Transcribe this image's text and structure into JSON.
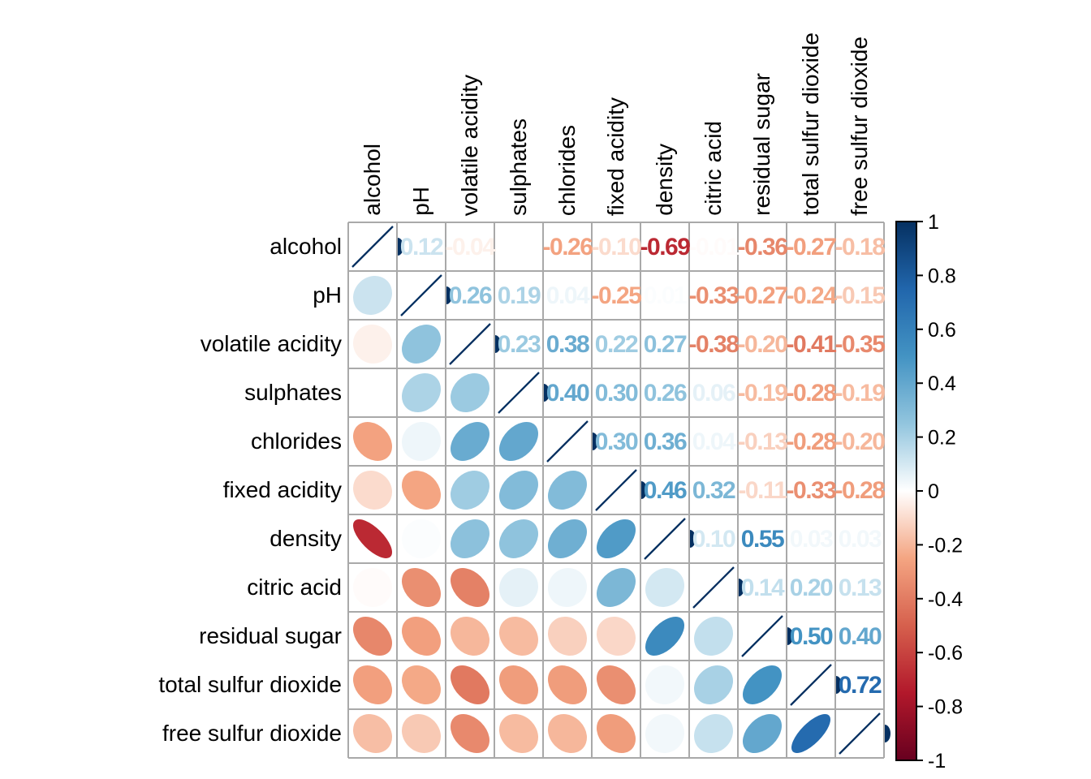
{
  "chart_data": {
    "type": "heatmap",
    "subtype": "correlation-matrix-mixed",
    "title": "",
    "lower_glyph": "ellipse",
    "upper_glyph": "number",
    "diag_glyph": "line",
    "legend_position": "right",
    "grid_on": true,
    "variables": [
      "alcohol",
      "pH",
      "volatile acidity",
      "sulphates",
      "chlorides",
      "fixed acidity",
      "density",
      "citric acid",
      "residual sugar",
      "total sulfur dioxide",
      "free sulfur dioxide"
    ],
    "matrix": [
      [
        1.0,
        0.12,
        -0.04,
        0.0,
        -0.26,
        -0.1,
        -0.69,
        -0.01,
        -0.36,
        -0.27,
        -0.18
      ],
      [
        0.12,
        1.0,
        0.26,
        0.19,
        0.04,
        -0.25,
        0.01,
        -0.33,
        -0.27,
        -0.24,
        -0.15
      ],
      [
        -0.04,
        0.26,
        1.0,
        0.23,
        0.38,
        0.22,
        0.27,
        -0.38,
        -0.2,
        -0.41,
        -0.35
      ],
      [
        0.0,
        0.19,
        0.23,
        1.0,
        0.4,
        0.3,
        0.26,
        0.06,
        -0.19,
        -0.28,
        -0.19
      ],
      [
        -0.26,
        0.04,
        0.38,
        0.4,
        1.0,
        0.3,
        0.36,
        0.04,
        -0.13,
        -0.28,
        -0.2
      ],
      [
        -0.1,
        -0.25,
        0.22,
        0.3,
        0.3,
        1.0,
        0.46,
        0.32,
        -0.11,
        -0.33,
        -0.28
      ],
      [
        -0.69,
        0.01,
        0.27,
        0.26,
        0.36,
        0.46,
        1.0,
        0.1,
        0.55,
        0.03,
        0.03
      ],
      [
        -0.01,
        -0.33,
        -0.38,
        0.06,
        0.04,
        0.32,
        0.1,
        1.0,
        0.14,
        0.2,
        0.13
      ],
      [
        -0.36,
        -0.27,
        -0.2,
        -0.19,
        -0.13,
        -0.11,
        0.55,
        0.14,
        1.0,
        0.5,
        0.4
      ],
      [
        -0.27,
        -0.24,
        -0.41,
        -0.28,
        -0.28,
        -0.33,
        0.03,
        0.2,
        0.5,
        1.0,
        0.72
      ],
      [
        -0.18,
        -0.15,
        -0.35,
        -0.19,
        -0.2,
        -0.28,
        0.03,
        0.13,
        0.4,
        0.72,
        1.0
      ]
    ],
    "colorbar": {
      "min": -1,
      "max": 1,
      "tick_labels": [
        "1",
        "0.8",
        "0.6",
        "0.4",
        "0.2",
        "0",
        "-0.2",
        "-0.4",
        "-0.6",
        "-0.8",
        "-1"
      ]
    },
    "colors": {
      "palette_neg_to_pos": [
        "#67001F",
        "#B2182B",
        "#D6604D",
        "#F4A582",
        "#FFFFFF",
        "#92C5DE",
        "#4393C3",
        "#2166AC",
        "#053061"
      ],
      "grid": "#a9a9a9",
      "diag_line": "#053061",
      "label": "#000000",
      "colorbar_border": "#000000",
      "background": "#ffffff"
    }
  }
}
